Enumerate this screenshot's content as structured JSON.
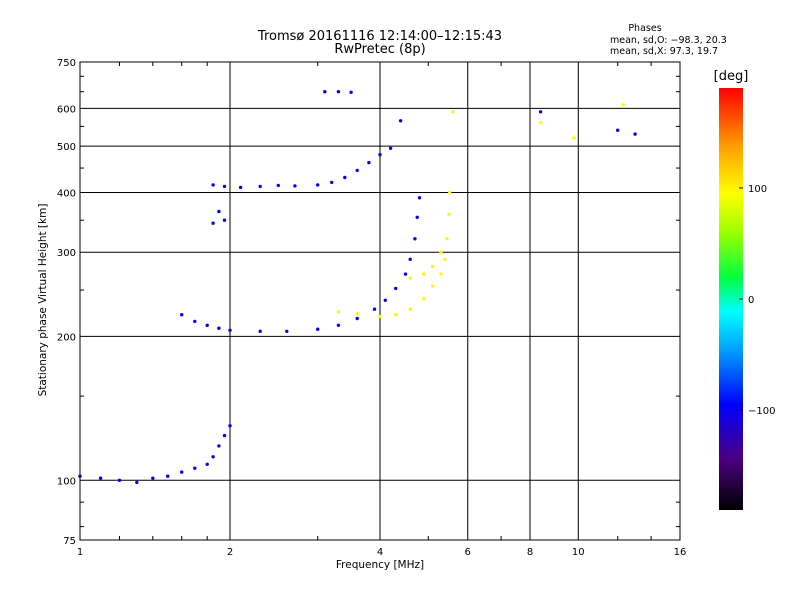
{
  "header": {
    "title": "Tromsø 20161116 12:14:00–12:15:43",
    "subtitle": "RwPretec (8p)"
  },
  "stats": {
    "heading": "Phases",
    "line_o": "mean, sd,O: −98.3, 20.3",
    "line_x": "mean, sd,X:  97.3, 19.7"
  },
  "colorbar": {
    "label": "[deg]",
    "range": [
      -190,
      190
    ],
    "ticks": [
      {
        "value": 100,
        "label": "100"
      },
      {
        "value": 0,
        "label": "0"
      },
      {
        "value": -100,
        "label": "−100"
      }
    ]
  },
  "chart_data": {
    "type": "scatter",
    "title": "Tromsø 20161116 12:14:00–12:15:43",
    "subtitle": "RwPretec (8p)",
    "xlabel": "Frequency [MHz]",
    "ylabel": "Stationary phase Virtual Height [km]",
    "x_scale": "log2",
    "y_scale": "log",
    "xlim": [
      1,
      16
    ],
    "ylim": [
      75,
      750
    ],
    "x_ticks": [
      {
        "value": 1,
        "label": "1"
      },
      {
        "value": 2,
        "label": "2"
      },
      {
        "value": 4,
        "label": "4"
      },
      {
        "value": 6,
        "label": "6"
      },
      {
        "value": 8,
        "label": "8"
      },
      {
        "value": 10,
        "label": "10"
      },
      {
        "value": 16,
        "label": "16"
      }
    ],
    "y_ticks": [
      {
        "value": 75,
        "label": "75"
      },
      {
        "value": 100,
        "label": "100"
      },
      {
        "value": 200,
        "label": "200"
      },
      {
        "value": 300,
        "label": "300"
      },
      {
        "value": 400,
        "label": "400"
      },
      {
        "value": 500,
        "label": "500"
      },
      {
        "value": 600,
        "label": "600"
      },
      {
        "value": 750,
        "label": "750"
      }
    ],
    "grid": true,
    "color_scale": "phase (deg), rainbow from black (−190) through blue, cyan, green, yellow to red (190)",
    "series": [
      {
        "name": "O",
        "color_value": -98,
        "points": [
          [
            1.0,
            102
          ],
          [
            1.1,
            101
          ],
          [
            1.2,
            100
          ],
          [
            1.3,
            99
          ],
          [
            1.4,
            101
          ],
          [
            1.5,
            102
          ],
          [
            1.6,
            104
          ],
          [
            1.7,
            106
          ],
          [
            1.8,
            108
          ],
          [
            1.85,
            112
          ],
          [
            1.9,
            118
          ],
          [
            1.95,
            124
          ],
          [
            2.0,
            130
          ],
          [
            1.6,
            222
          ],
          [
            1.7,
            215
          ],
          [
            1.8,
            211
          ],
          [
            1.9,
            208
          ],
          [
            2.0,
            206
          ],
          [
            2.3,
            205
          ],
          [
            2.6,
            205
          ],
          [
            3.0,
            207
          ],
          [
            3.3,
            211
          ],
          [
            3.6,
            218
          ],
          [
            3.9,
            228
          ],
          [
            4.1,
            238
          ],
          [
            4.3,
            252
          ],
          [
            4.5,
            270
          ],
          [
            4.6,
            290
          ],
          [
            4.7,
            320
          ],
          [
            4.75,
            355
          ],
          [
            4.8,
            390
          ],
          [
            1.85,
            345
          ],
          [
            1.9,
            365
          ],
          [
            1.95,
            350
          ],
          [
            1.85,
            415
          ],
          [
            1.95,
            412
          ],
          [
            2.1,
            410
          ],
          [
            2.3,
            412
          ],
          [
            2.5,
            414
          ],
          [
            2.7,
            413
          ],
          [
            3.0,
            415
          ],
          [
            3.2,
            420
          ],
          [
            3.4,
            430
          ],
          [
            3.6,
            445
          ],
          [
            3.8,
            462
          ],
          [
            4.0,
            480
          ],
          [
            4.2,
            495
          ],
          [
            3.1,
            650
          ],
          [
            3.3,
            650
          ],
          [
            3.5,
            648
          ],
          [
            4.4,
            565
          ],
          [
            8.4,
            590
          ],
          [
            12.0,
            540
          ],
          [
            13.0,
            530
          ]
        ]
      },
      {
        "name": "X",
        "color_value": 97,
        "points": [
          [
            3.3,
            225
          ],
          [
            3.6,
            223
          ],
          [
            4.0,
            220
          ],
          [
            4.3,
            222
          ],
          [
            4.6,
            228
          ],
          [
            4.9,
            240
          ],
          [
            5.1,
            255
          ],
          [
            5.3,
            270
          ],
          [
            5.4,
            290
          ],
          [
            5.45,
            320
          ],
          [
            5.5,
            360
          ],
          [
            5.52,
            400
          ],
          [
            4.6,
            265
          ],
          [
            4.9,
            270
          ],
          [
            5.1,
            280
          ],
          [
            5.3,
            300
          ],
          [
            5.6,
            590
          ],
          [
            8.4,
            560
          ],
          [
            9.8,
            520
          ],
          [
            12.3,
            610
          ]
        ]
      }
    ]
  }
}
